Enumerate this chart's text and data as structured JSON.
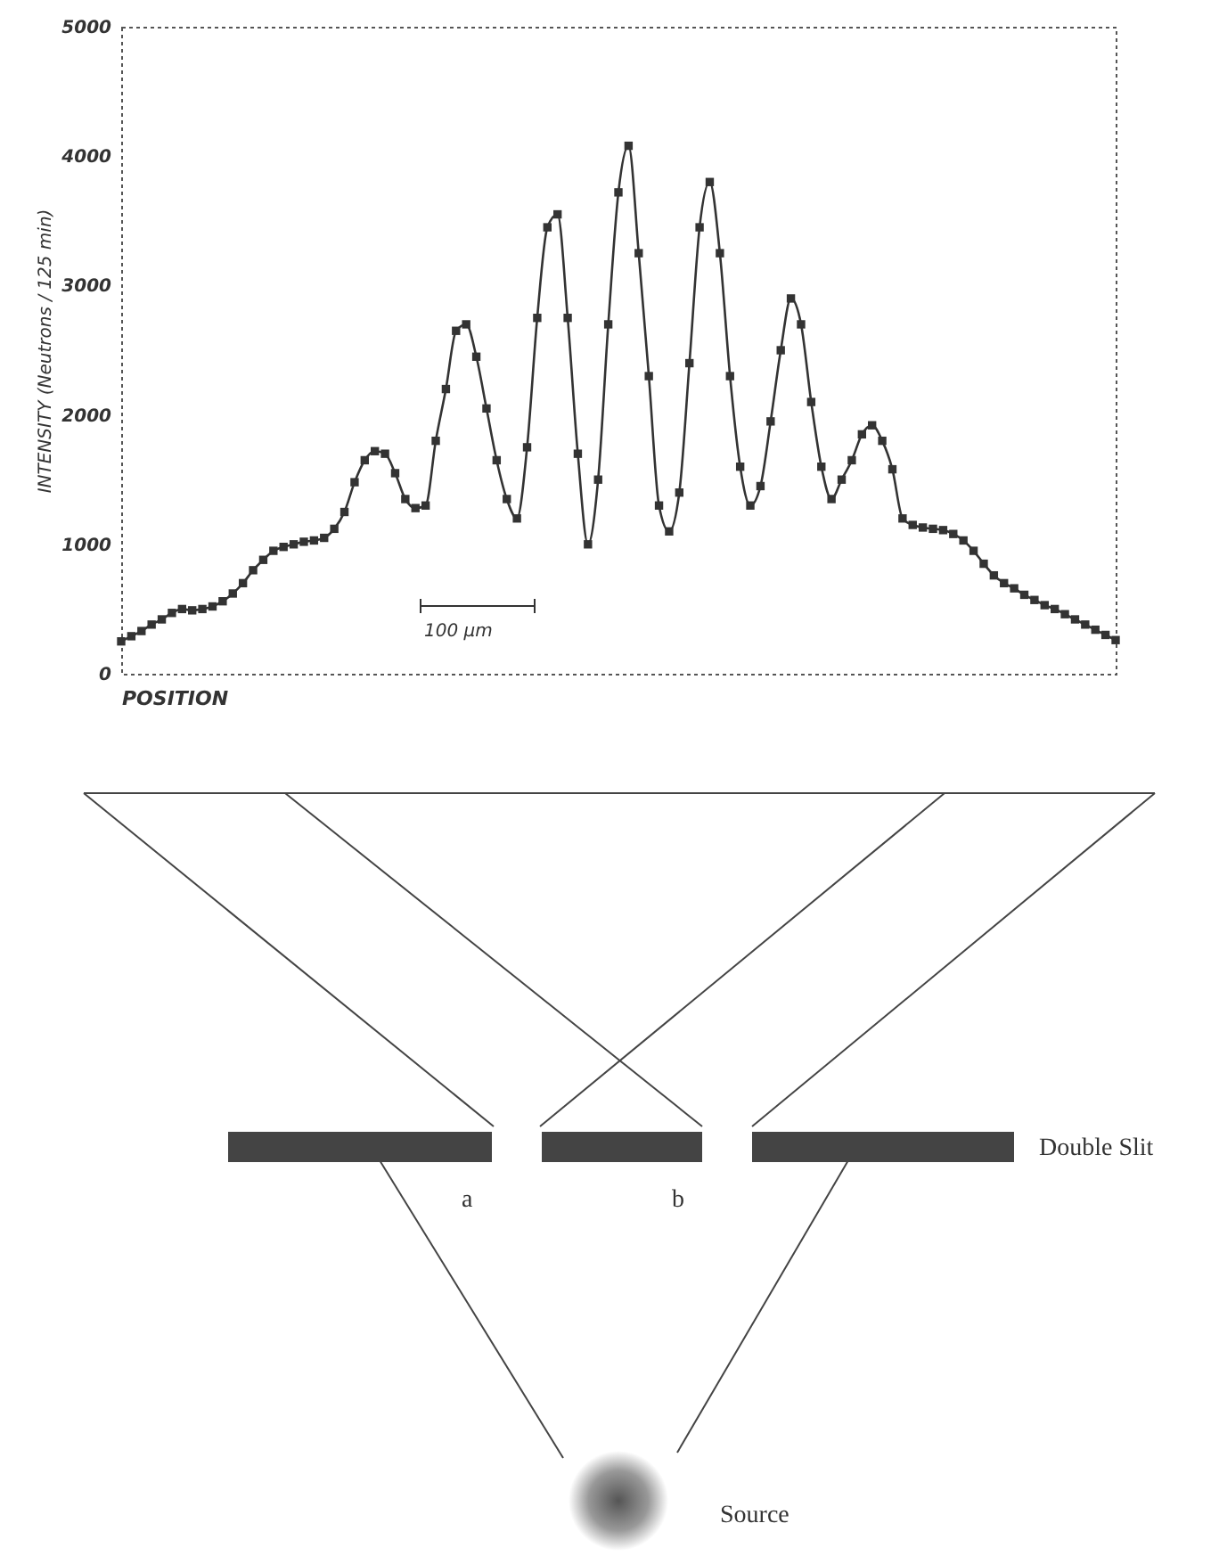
{
  "chart_data": {
    "type": "line",
    "xlabel": "POSITION",
    "ylabel": "INTENSITY (Neutrons / 125 min)",
    "categories": [
      null,
      null,
      null,
      null,
      null,
      null,
      null,
      null,
      null,
      null,
      null,
      null,
      null,
      null,
      null,
      null,
      null,
      null,
      null,
      null,
      null,
      null,
      null,
      null,
      null,
      null,
      null,
      null,
      null,
      null,
      null,
      null,
      null,
      null,
      null,
      null,
      null,
      null,
      null,
      null,
      null,
      null,
      null,
      null,
      null,
      null,
      null,
      null,
      null,
      null,
      null,
      null,
      null,
      null,
      null,
      null,
      null,
      null,
      null,
      null,
      null,
      null,
      null,
      null,
      null,
      null,
      null,
      null,
      null,
      null,
      null,
      null,
      null,
      null,
      null,
      null,
      null,
      null,
      null,
      null,
      null,
      null,
      null,
      null,
      null,
      null,
      null,
      null,
      null,
      null,
      null,
      null,
      null,
      null,
      null,
      null,
      null,
      null,
      null
    ],
    "series": [
      {
        "color": "#333333",
        "values": [
          250,
          290,
          330,
          380,
          420,
          470,
          500,
          490,
          500,
          520,
          560,
          620,
          700,
          800,
          880,
          950,
          980,
          1000,
          1020,
          1030,
          1050,
          1120,
          1250,
          1480,
          1650,
          1720,
          1700,
          1550,
          1350,
          1280,
          1300,
          1800,
          2200,
          2650,
          2700,
          2450,
          2050,
          1650,
          1350,
          1200,
          1750,
          2750,
          3450,
          3550,
          2750,
          1700,
          1000,
          1500,
          2700,
          3720,
          4080,
          3250,
          2300,
          1300,
          1100,
          1400,
          2400,
          3450,
          3800,
          3250,
          2300,
          1600,
          1300,
          1450,
          1950,
          2500,
          2900,
          2700,
          2100,
          1600,
          1350,
          1500,
          1650,
          1850,
          1920,
          1800,
          1580,
          1200,
          1150,
          1130,
          1120,
          1110,
          1080,
          1030,
          950,
          850,
          760,
          700,
          660,
          610,
          570,
          530,
          500,
          460,
          420,
          380,
          340,
          300,
          260
        ]
      }
    ],
    "ylim": [
      0,
      5000
    ],
    "yticks": [
      0,
      1000,
      2000,
      3000,
      4000,
      5000
    ],
    "tick_labels": "y",
    "grid": false,
    "marker": "square",
    "line_style": "solid",
    "annotations": [
      "100 µm",
      "Double Slit",
      "a",
      "b",
      "Source"
    ]
  }
}
